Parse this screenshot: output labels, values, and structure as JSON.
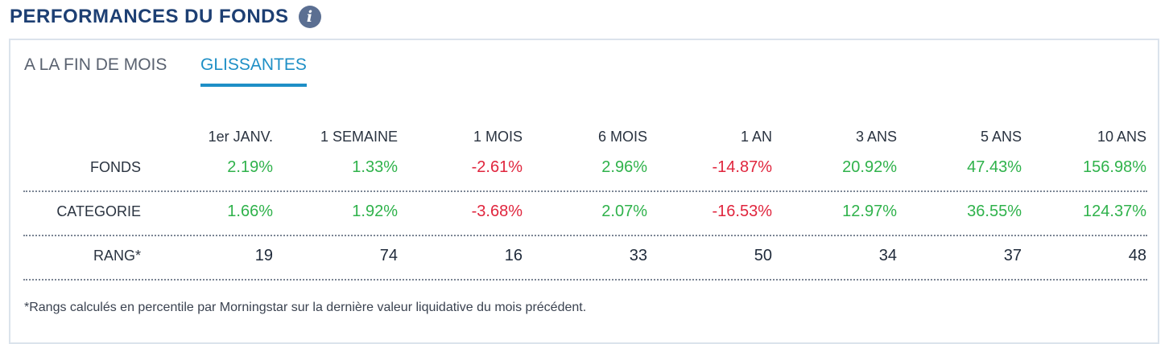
{
  "header": {
    "title": "PERFORMANCES DU FONDS",
    "info_icon": "info-icon"
  },
  "tabs": [
    {
      "label": "A LA FIN DE MOIS",
      "active": false
    },
    {
      "label": "GLISSANTES",
      "active": true
    }
  ],
  "table": {
    "columns": [
      "1er JANV.",
      "1 SEMAINE",
      "1 MOIS",
      "6 MOIS",
      "1 AN",
      "3 ANS",
      "5 ANS",
      "10 ANS"
    ],
    "rows": [
      {
        "label": "FONDS",
        "values": [
          "2.19%",
          "1.33%",
          "-2.61%",
          "2.96%",
          "-14.87%",
          "20.92%",
          "47.43%",
          "156.98%"
        ]
      },
      {
        "label": "CATEGORIE",
        "values": [
          "1.66%",
          "1.92%",
          "-3.68%",
          "2.07%",
          "-16.53%",
          "12.97%",
          "36.55%",
          "124.37%"
        ]
      },
      {
        "label": "RANG*",
        "values": [
          "19",
          "74",
          "16",
          "33",
          "50",
          "34",
          "37",
          "48"
        ]
      }
    ]
  },
  "footnote": "*Rangs calculés en percentile par Morningstar sur la dernière valeur liquidative du mois précédent.",
  "colors": {
    "title": "#1d3f73",
    "active_tab": "#1e8fc6",
    "positive": "#2fb24b",
    "negative": "#e0253d"
  }
}
